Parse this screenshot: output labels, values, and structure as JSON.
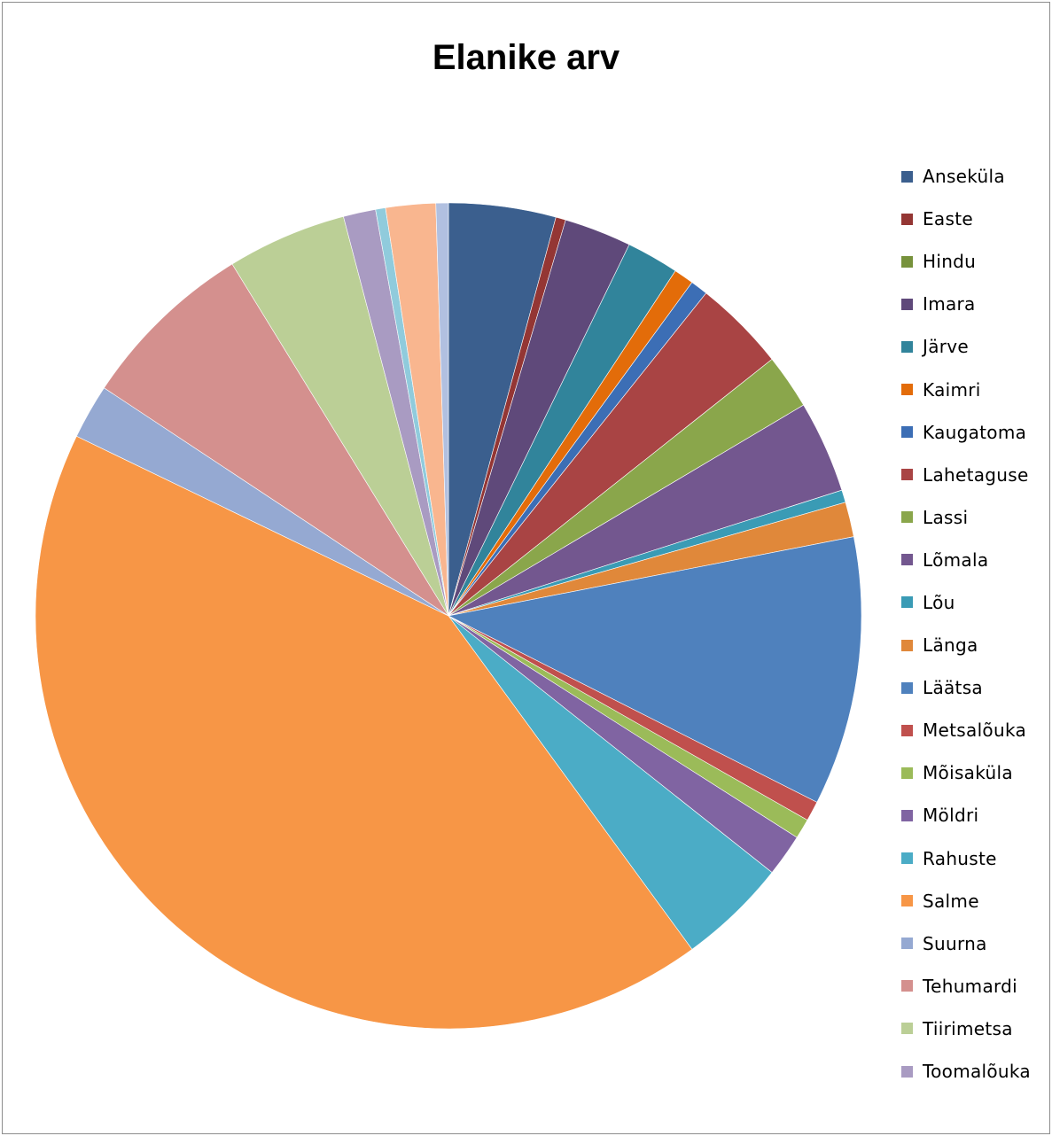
{
  "chart_data": {
    "type": "pie",
    "title": "Elanike arv",
    "legend_position": "right",
    "slices": [
      {
        "label": "Anseküla",
        "value": 4.3,
        "color": "#3b5f8e"
      },
      {
        "label": "Easte",
        "value": 0.4,
        "color": "#943634"
      },
      {
        "label": "Hindu",
        "value": 0.0,
        "color": "#77923c"
      },
      {
        "label": "Imara",
        "value": 2.7,
        "color": "#5f497a"
      },
      {
        "label": "Järve",
        "value": 2.1,
        "color": "#31849b"
      },
      {
        "label": "Kaimri",
        "value": 0.8,
        "color": "#e36c09"
      },
      {
        "label": "Kaugatoma",
        "value": 0.7,
        "color": "#3c6eb5"
      },
      {
        "label": "Lahetaguse",
        "value": 3.7,
        "color": "#a94444"
      },
      {
        "label": "Lassi",
        "value": 2.2,
        "color": "#8aa64b"
      },
      {
        "label": "Lõmala",
        "value": 3.7,
        "color": "#73578f"
      },
      {
        "label": "Lõu",
        "value": 0.5,
        "color": "#3a9bb5"
      },
      {
        "label": "Länga",
        "value": 1.4,
        "color": "#e0883a"
      },
      {
        "label": "Läätsa",
        "value": 10.8,
        "color": "#4f81bd"
      },
      {
        "label": "Metsalõuka",
        "value": 0.8,
        "color": "#c0504d"
      },
      {
        "label": "Mõisaküla",
        "value": 0.8,
        "color": "#9bbb59"
      },
      {
        "label": "Möldri",
        "value": 1.7,
        "color": "#8064a2"
      },
      {
        "label": "Rahuste",
        "value": 4.4,
        "color": "#4bacc6"
      },
      {
        "label": "Salme",
        "value": 43.3,
        "color": "#f79646"
      },
      {
        "label": "Suurna",
        "value": 2.2,
        "color": "#95a9d2"
      },
      {
        "label": "Tehumardi",
        "value": 7.1,
        "color": "#d4908e"
      },
      {
        "label": "Tiirimetsa",
        "value": 4.8,
        "color": "#bbcf96"
      },
      {
        "label": "Toomalõuka",
        "value": 1.3,
        "color": "#a99bc2"
      },
      {
        "label": "",
        "value": 0.4,
        "color": "#90cbdc"
      },
      {
        "label": "",
        "value": 2.0,
        "color": "#f9b68f"
      },
      {
        "label": "",
        "value": 0.5,
        "color": "#b1c0e0"
      }
    ]
  }
}
